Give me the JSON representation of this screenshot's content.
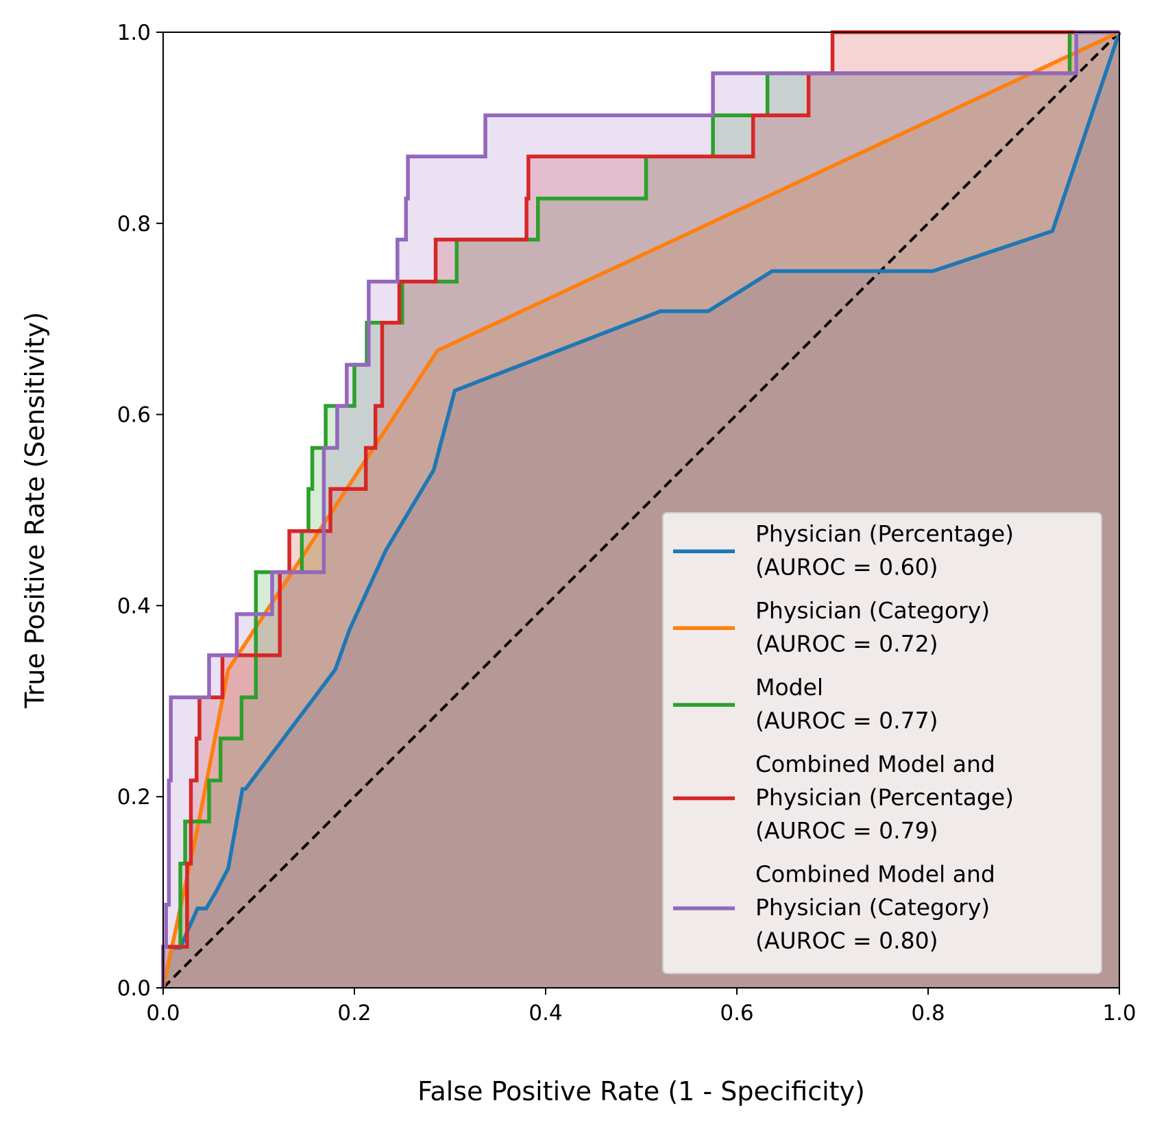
{
  "chart_data": {
    "type": "line",
    "title": "",
    "xlabel": "False Positive Rate (1 - Specificity)",
    "ylabel": "True Positive Rate (Sensitivity)",
    "xlim": [
      0,
      1
    ],
    "ylim": [
      0,
      1
    ],
    "x_ticks": [
      "0.0",
      "0.2",
      "0.4",
      "0.6",
      "0.8",
      "1.0"
    ],
    "y_ticks": [
      "0.0",
      "0.2",
      "0.4",
      "0.6",
      "0.8",
      "1.0"
    ],
    "grid": false,
    "legend_position": "lower-right",
    "fill_under_curves": true,
    "diagonal_reference": {
      "x": [
        0,
        1
      ],
      "y": [
        0,
        1
      ],
      "color": "#000000",
      "style": "dashed"
    },
    "series": [
      {
        "legend": [
          "Physician (Percentage)",
          "(AUROC = 0.60)"
        ],
        "color": "#1f77b4",
        "x": [
          0,
          0.0,
          0.009,
          0.018,
          0.027,
          0.036,
          0.045,
          0.055,
          0.068,
          0.083,
          0.086,
          0.18,
          0.195,
          0.233,
          0.283,
          0.305,
          0.52,
          0.57,
          0.637,
          0.805,
          0.93,
          1.0
        ],
        "y": [
          0,
          0.0,
          0.042,
          0.042,
          0.063,
          0.083,
          0.083,
          0.1,
          0.125,
          0.208,
          0.208,
          0.333,
          0.375,
          0.458,
          0.542,
          0.625,
          0.708,
          0.708,
          0.75,
          0.75,
          0.792,
          1.0
        ]
      },
      {
        "legend": [
          "Physician (Category)",
          "(AUROC = 0.72)"
        ],
        "color": "#ff7f0e",
        "x": [
          0,
          0.036,
          0.068,
          0.287,
          1.0
        ],
        "y": [
          0,
          0.167,
          0.333,
          0.667,
          1.0
        ]
      },
      {
        "legend": [
          "Model",
          "(AUROC = 0.77)"
        ],
        "color": "#2ca02c",
        "x": [
          0,
          0.0,
          0.018,
          0.018,
          0.023,
          0.023,
          0.027,
          0.027,
          0.048,
          0.048,
          0.06,
          0.06,
          0.082,
          0.082,
          0.097,
          0.097,
          0.145,
          0.145,
          0.152,
          0.152,
          0.156,
          0.156,
          0.17,
          0.17,
          0.2,
          0.2,
          0.213,
          0.213,
          0.25,
          0.25,
          0.293,
          0.293,
          0.307,
          0.307,
          0.385,
          0.385,
          0.392,
          0.392,
          0.505,
          0.505,
          0.575,
          0.575,
          0.632,
          0.632,
          0.948,
          0.948,
          1.0
        ],
        "y": [
          0,
          0.043,
          0.043,
          0.13,
          0.13,
          0.174,
          0.174,
          0.174,
          0.174,
          0.217,
          0.217,
          0.261,
          0.261,
          0.304,
          0.304,
          0.435,
          0.435,
          0.478,
          0.478,
          0.522,
          0.522,
          0.565,
          0.565,
          0.609,
          0.609,
          0.652,
          0.652,
          0.696,
          0.696,
          0.739,
          0.739,
          0.739,
          0.739,
          0.783,
          0.783,
          0.783,
          0.783,
          0.826,
          0.826,
          0.87,
          0.87,
          0.913,
          0.913,
          0.957,
          0.957,
          1.0,
          1.0
        ]
      },
      {
        "legend": [
          "Combined Model and",
          "Physician (Percentage)",
          "(AUROC = 0.79)"
        ],
        "color": "#d62728",
        "x": [
          0,
          0.0,
          0.025,
          0.025,
          0.029,
          0.029,
          0.035,
          0.035,
          0.038,
          0.038,
          0.062,
          0.062,
          0.083,
          0.083,
          0.122,
          0.122,
          0.132,
          0.132,
          0.17,
          0.17,
          0.175,
          0.175,
          0.212,
          0.212,
          0.222,
          0.222,
          0.229,
          0.229,
          0.247,
          0.247,
          0.267,
          0.267,
          0.285,
          0.285,
          0.38,
          0.38,
          0.382,
          0.382,
          0.575,
          0.575,
          0.617,
          0.617,
          0.675,
          0.675,
          0.7,
          0.7,
          0.945,
          0.945,
          1.0
        ],
        "y": [
          0,
          0.043,
          0.043,
          0.13,
          0.13,
          0.217,
          0.217,
          0.261,
          0.261,
          0.304,
          0.304,
          0.348,
          0.348,
          0.348,
          0.348,
          0.435,
          0.435,
          0.478,
          0.478,
          0.478,
          0.478,
          0.522,
          0.522,
          0.565,
          0.565,
          0.609,
          0.609,
          0.696,
          0.696,
          0.739,
          0.739,
          0.739,
          0.739,
          0.783,
          0.783,
          0.826,
          0.826,
          0.87,
          0.87,
          0.87,
          0.87,
          0.913,
          0.913,
          0.957,
          0.957,
          1.0,
          1.0,
          1.0,
          1.0
        ]
      },
      {
        "legend": [
          "Combined Model and",
          "Physician (Category)",
          "(AUROC = 0.80)"
        ],
        "color": "#9467bd",
        "x": [
          0,
          0.0,
          0.003,
          0.003,
          0.006,
          0.006,
          0.008,
          0.008,
          0.048,
          0.048,
          0.062,
          0.062,
          0.077,
          0.077,
          0.114,
          0.114,
          0.168,
          0.168,
          0.182,
          0.182,
          0.186,
          0.186,
          0.192,
          0.192,
          0.21,
          0.21,
          0.215,
          0.215,
          0.222,
          0.222,
          0.245,
          0.245,
          0.254,
          0.254,
          0.256,
          0.256,
          0.337,
          0.337,
          0.575,
          0.575,
          0.6,
          0.6,
          0.955,
          0.955,
          1.0
        ],
        "y": [
          0,
          0.043,
          0.043,
          0.087,
          0.087,
          0.217,
          0.217,
          0.304,
          0.304,
          0.348,
          0.348,
          0.348,
          0.348,
          0.391,
          0.391,
          0.435,
          0.435,
          0.565,
          0.565,
          0.609,
          0.609,
          0.609,
          0.609,
          0.652,
          0.652,
          0.652,
          0.652,
          0.739,
          0.739,
          0.739,
          0.739,
          0.783,
          0.783,
          0.826,
          0.826,
          0.87,
          0.87,
          0.913,
          0.913,
          0.957,
          0.957,
          0.957,
          0.957,
          1.0,
          1.0
        ]
      }
    ]
  }
}
